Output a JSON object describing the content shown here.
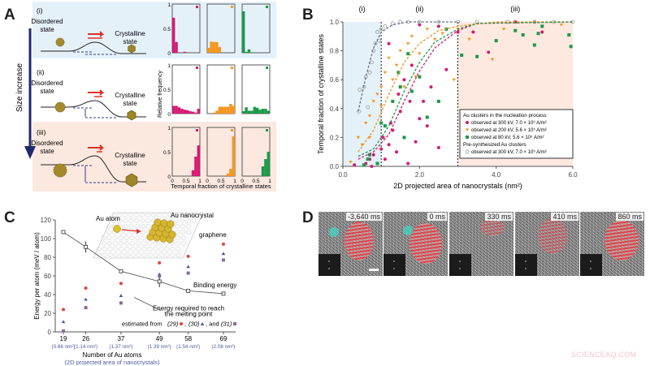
{
  "panel_labels": {
    "a": "A",
    "b": "B",
    "c": "C",
    "d": "D"
  },
  "panel_a": {
    "arrow_label": "Size increase",
    "rows": [
      {
        "id": "(i)",
        "disordered": "Disordered state",
        "crystalline": "Crystalline state"
      },
      {
        "id": "(ii)",
        "disordered": "Disordered state",
        "crystalline": "Crystalline state"
      },
      {
        "id": "(iii)",
        "disordered": "Disordered state",
        "crystalline": "Crystalline state"
      }
    ],
    "colors": {
      "row_i_bg": "#e5f1f9",
      "row_iii_bg": "#fbe8df",
      "arrow": "#1f2a6e",
      "forward_arrow": "#e0302a"
    },
    "hist_ylabel": "Relative frequency",
    "hist_xlabel": "Temporal fraction of crystalline states",
    "hist_yticks": [
      "0",
      "0.5",
      "1"
    ],
    "hist_xticks": [
      "0",
      "0.5",
      "1"
    ],
    "hist_colors": [
      "#d61a74",
      "#f5961f",
      "#1b9a4a"
    ],
    "hist_data": [
      [
        [
          0.72,
          0.22,
          0.01,
          0,
          0.02,
          0,
          0,
          0,
          0,
          0
        ],
        [
          0.1,
          0.23,
          0.22,
          0.22,
          0.12,
          0,
          0,
          0,
          0,
          0
        ],
        [
          0.85,
          0.02,
          0.07,
          0,
          0.01,
          0,
          0,
          0,
          0,
          0
        ]
      ],
      [
        [
          0.16,
          0.16,
          0.13,
          0.1,
          0.08,
          0.07,
          0.05,
          0.04,
          0.02,
          0.1
        ],
        [
          0,
          0,
          0.02,
          0.06,
          0.14,
          0.14,
          0.14,
          0.14,
          0.2,
          0.16
        ],
        [
          0.05,
          0.13,
          0.06,
          0.06,
          0.14,
          0.12,
          0.08,
          0.1,
          0.1,
          0.06
        ]
      ],
      [
        [
          0,
          0,
          0,
          0,
          0,
          0,
          0,
          0.12,
          0.4,
          0.63
        ],
        [
          0,
          0,
          0,
          0,
          0,
          0,
          0,
          0.05,
          0.15,
          0.82
        ],
        [
          0,
          0,
          0,
          0,
          0,
          0,
          0,
          0.2,
          0.35,
          0.5
        ]
      ]
    ]
  },
  "chart_data": [
    {
      "panel": "B",
      "type": "scatter",
      "xlabel": "2D projected area of nanocrystals (nm²)",
      "ylabel": "Temporal fraction of crystalline states",
      "xlim": [
        0,
        6
      ],
      "ylim": [
        0,
        1
      ],
      "xticks": [
        "0.0",
        "2.0",
        "4.0",
        "6.0"
      ],
      "yticks": [
        "0.0",
        "0.2",
        "0.4",
        "0.6",
        "0.8",
        "1.0"
      ],
      "regions": [
        {
          "label": "(i)",
          "range": [
            0,
            1
          ],
          "color": "#e5f1f9"
        },
        {
          "label": "(ii)",
          "range": [
            1,
            3
          ],
          "color": "#ffffff"
        },
        {
          "label": "(iii)",
          "range": [
            3,
            6
          ],
          "color": "#fde9df"
        }
      ],
      "legend": {
        "placement": "lower-right",
        "group1": "Au clusters in the nucleation process",
        "group2": "Pre-synthesized Au clusters"
      },
      "series": [
        {
          "name": "observed at 300 kV, 7.0 × 10⁶ A/m²",
          "color": "#d61a74",
          "marker": "circle",
          "points": [
            [
              0.3,
              0.01
            ],
            [
              0.6,
              0.02
            ],
            [
              0.7,
              0.05
            ],
            [
              0.75,
              0.0
            ],
            [
              0.8,
              0.08
            ],
            [
              0.9,
              0.02
            ],
            [
              1.0,
              0.12
            ],
            [
              1.05,
              0.2
            ],
            [
              1.1,
              0.05
            ],
            [
              1.2,
              0.15
            ],
            [
              1.25,
              0.3
            ],
            [
              1.3,
              0.25
            ],
            [
              1.4,
              0.1
            ],
            [
              1.45,
              0.5
            ],
            [
              1.5,
              0.38
            ],
            [
              1.6,
              0.6
            ],
            [
              1.7,
              0.02
            ],
            [
              1.75,
              0.45
            ],
            [
              1.8,
              0.7
            ],
            [
              1.9,
              0.17
            ],
            [
              2.0,
              0.33
            ],
            [
              2.1,
              0.45
            ],
            [
              2.2,
              0.28
            ],
            [
              2.3,
              0.55
            ],
            [
              2.5,
              0.13
            ],
            [
              2.5,
              0.97
            ],
            [
              2.7,
              0.67
            ],
            [
              3.0,
              0.93
            ],
            [
              3.4,
              0.93
            ],
            [
              3.8,
              0.79
            ],
            [
              4.5,
              1.0
            ],
            [
              5.2,
              0.93
            ],
            [
              1.2,
              0.85
            ],
            [
              2.0,
              0.98
            ]
          ],
          "fit": [
            [
              0.4,
              0.05
            ],
            [
              0.8,
              0.1
            ],
            [
              1.2,
              0.22
            ],
            [
              1.6,
              0.45
            ],
            [
              2.0,
              0.66
            ],
            [
              2.4,
              0.82
            ],
            [
              3.0,
              0.94
            ],
            [
              3.5,
              0.99
            ],
            [
              6,
              1.0
            ]
          ]
        },
        {
          "name": "observed at 200 kV, 5.6 × 10⁵ A/m²",
          "color": "#f5961f",
          "marker": "triangle-down",
          "points": [
            [
              0.2,
              0.03
            ],
            [
              0.4,
              0.2
            ],
            [
              0.5,
              0.15
            ],
            [
              0.6,
              0.3
            ],
            [
              0.7,
              0.35
            ],
            [
              0.8,
              0.45
            ],
            [
              0.9,
              0.5
            ],
            [
              1.0,
              0.55
            ],
            [
              1.1,
              0.65
            ],
            [
              1.2,
              0.75
            ],
            [
              1.3,
              0.6
            ],
            [
              1.4,
              0.7
            ],
            [
              1.5,
              0.8
            ],
            [
              1.6,
              0.55
            ],
            [
              1.7,
              0.85
            ],
            [
              1.8,
              0.9
            ],
            [
              1.9,
              0.62
            ],
            [
              2.0,
              0.78
            ],
            [
              2.2,
              0.95
            ],
            [
              2.4,
              0.88
            ],
            [
              2.6,
              0.92
            ],
            [
              2.9,
              0.6
            ],
            [
              3.0,
              0.95
            ],
            [
              3.3,
              0.88
            ],
            [
              3.9,
              0.74
            ],
            [
              4.2,
              0.95
            ],
            [
              5.0,
              1.0
            ],
            [
              5.7,
              0.98
            ],
            [
              1.0,
              0.42
            ],
            [
              0.7,
              0.2
            ]
          ],
          "fit": [
            [
              0.4,
              0.1
            ],
            [
              0.8,
              0.25
            ],
            [
              1.2,
              0.5
            ],
            [
              1.6,
              0.72
            ],
            [
              2.0,
              0.85
            ],
            [
              2.5,
              0.94
            ],
            [
              3.0,
              0.97
            ],
            [
              4,
              1.0
            ],
            [
              6,
              1.0
            ]
          ]
        },
        {
          "name": "observed at   80 kV, 5.6 × 10⁵ A/m²",
          "color": "#1b9a4a",
          "marker": "square",
          "points": [
            [
              0.55,
              0.01
            ],
            [
              0.65,
              0.05
            ],
            [
              0.7,
              0.08
            ],
            [
              0.9,
              0.02
            ],
            [
              1.0,
              0.3
            ],
            [
              1.1,
              0.28
            ],
            [
              1.3,
              0.45
            ],
            [
              1.45,
              0.65
            ],
            [
              1.5,
              0.55
            ],
            [
              1.6,
              0.2
            ],
            [
              1.8,
              0.52
            ],
            [
              2.0,
              0.62
            ],
            [
              2.2,
              0.34
            ],
            [
              2.5,
              0.45
            ],
            [
              2.7,
              0.95
            ],
            [
              3.1,
              0.77
            ],
            [
              3.5,
              0.76
            ],
            [
              4.0,
              0.87
            ],
            [
              4.5,
              0.94
            ],
            [
              4.7,
              0.91
            ],
            [
              5.0,
              0.84
            ],
            [
              5.1,
              0.92
            ],
            [
              5.2,
              0.97
            ],
            [
              5.9,
              0.91
            ],
            [
              5.95,
              0.83
            ],
            [
              1.7,
              0.78
            ]
          ],
          "fit": [
            [
              0.4,
              0.07
            ],
            [
              0.8,
              0.12
            ],
            [
              1.2,
              0.28
            ],
            [
              1.6,
              0.52
            ],
            [
              2.0,
              0.72
            ],
            [
              2.4,
              0.86
            ],
            [
              3.0,
              0.95
            ],
            [
              3.5,
              0.99
            ],
            [
              6,
              1.0
            ]
          ]
        },
        {
          "name": "observed at 300 kV, 7.0 × 10⁶ A/m²",
          "group": 2,
          "color": "#9a9a9a",
          "marker": "open-circle",
          "points": [
            [
              0.42,
              0.38
            ],
            [
              0.44,
              0.53
            ],
            [
              0.55,
              0.55
            ],
            [
              0.6,
              0.62
            ],
            [
              0.65,
              0.41
            ],
            [
              0.7,
              0.65
            ],
            [
              0.75,
              0.72
            ],
            [
              0.8,
              0.8
            ],
            [
              0.85,
              0.85
            ],
            [
              0.9,
              0.93
            ],
            [
              0.95,
              0.87
            ],
            [
              1.0,
              0.95
            ],
            [
              1.1,
              0.97
            ],
            [
              1.3,
              0.99
            ],
            [
              1.5,
              1.0
            ],
            [
              1.7,
              1.0
            ],
            [
              2.0,
              1.0
            ],
            [
              2.5,
              1.0
            ],
            [
              3.0,
              1.0
            ],
            [
              3.5,
              1.0
            ],
            [
              4.3,
              1.0
            ],
            [
              5.0,
              1.0
            ],
            [
              5.5,
              1.0
            ],
            [
              6.0,
              1.0
            ]
          ],
          "fit": [
            [
              0.4,
              0.38
            ],
            [
              0.6,
              0.62
            ],
            [
              0.8,
              0.82
            ],
            [
              1.0,
              0.93
            ],
            [
              1.3,
              0.98
            ],
            [
              1.7,
              1.0
            ],
            [
              3,
              1.0
            ]
          ]
        }
      ]
    },
    {
      "panel": "C",
      "type": "scatter",
      "ylabel": "Energy per atom (meV / atom)",
      "xlabel": "Number of Au atoms",
      "xlabel2": "(2D projected area of nanocrystals)",
      "ylim": [
        0,
        120
      ],
      "yticks": [
        "0",
        "20",
        "40",
        "60",
        "80",
        "100",
        "120"
      ],
      "categories": [
        19,
        26,
        37,
        49,
        58,
        69
      ],
      "category_labels": [
        "19",
        "26",
        "37",
        "49",
        "58",
        "69"
      ],
      "category_sublabels": [
        "(0.86 nm²)",
        "(1.14 nm²)",
        "(1.37 nm²)",
        "(1.39 nm²)",
        "(1.54 nm²)",
        "(2.08 nm²)"
      ],
      "binding_energy": {
        "label": "Binding energy",
        "values": [
          107,
          91,
          65,
          54,
          44,
          41
        ],
        "errors": [
          0,
          6,
          1,
          6,
          1,
          0
        ]
      },
      "series": [
        {
          "name": "(29)",
          "color": "#e8403a",
          "marker": "circle",
          "values": [
            24,
            47,
            52,
            74,
            81,
            94
          ]
        },
        {
          "name": "(30)",
          "color": "#3a5aa8",
          "marker": "triangle",
          "values": [
            11,
            35,
            39,
            62,
            70,
            84
          ]
        },
        {
          "name": "(31)",
          "color": "#8a6aa0",
          "marker": "square",
          "values": [
            1,
            26,
            31,
            60,
            63,
            77
          ]
        }
      ],
      "annotations": {
        "line1": "Energy required to reach",
        "line2": "the melting point",
        "line3_prefix": "estimated from",
        "sep1": ",",
        "sep2": ", and"
      },
      "inset": {
        "atom": "Au atom",
        "nanocrystal": "Au nanocrystal",
        "substrate": "graphene"
      }
    }
  ],
  "panel_d": {
    "times": [
      "-3,640 ms",
      "0 ms",
      "330 ms",
      "410 ms",
      "860 ms"
    ]
  },
  "watermark": "SCIENCEAQ.COM"
}
